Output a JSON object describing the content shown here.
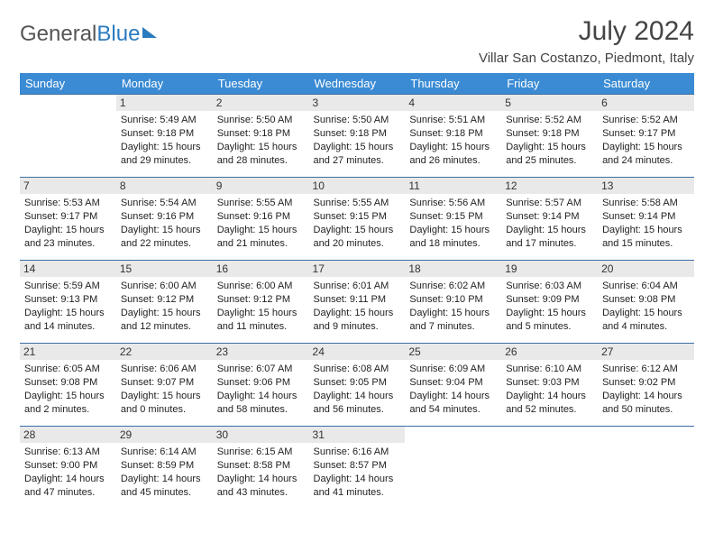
{
  "logo": {
    "part1": "General",
    "part2": "Blue"
  },
  "title": "July 2024",
  "location": "Villar San Costanzo, Piedmont, Italy",
  "colors": {
    "header_bg": "#3b8bd4",
    "header_text": "#ffffff",
    "border": "#3b6fa3",
    "daynum_bg": "#e9e9e9",
    "logo_blue": "#2b7bbf"
  },
  "weekdays": [
    "Sunday",
    "Monday",
    "Tuesday",
    "Wednesday",
    "Thursday",
    "Friday",
    "Saturday"
  ],
  "weeks": [
    [
      {
        "day": "",
        "sunrise": "",
        "sunset": "",
        "daylight1": "",
        "daylight2": ""
      },
      {
        "day": "1",
        "sunrise": "Sunrise: 5:49 AM",
        "sunset": "Sunset: 9:18 PM",
        "daylight1": "Daylight: 15 hours",
        "daylight2": "and 29 minutes."
      },
      {
        "day": "2",
        "sunrise": "Sunrise: 5:50 AM",
        "sunset": "Sunset: 9:18 PM",
        "daylight1": "Daylight: 15 hours",
        "daylight2": "and 28 minutes."
      },
      {
        "day": "3",
        "sunrise": "Sunrise: 5:50 AM",
        "sunset": "Sunset: 9:18 PM",
        "daylight1": "Daylight: 15 hours",
        "daylight2": "and 27 minutes."
      },
      {
        "day": "4",
        "sunrise": "Sunrise: 5:51 AM",
        "sunset": "Sunset: 9:18 PM",
        "daylight1": "Daylight: 15 hours",
        "daylight2": "and 26 minutes."
      },
      {
        "day": "5",
        "sunrise": "Sunrise: 5:52 AM",
        "sunset": "Sunset: 9:18 PM",
        "daylight1": "Daylight: 15 hours",
        "daylight2": "and 25 minutes."
      },
      {
        "day": "6",
        "sunrise": "Sunrise: 5:52 AM",
        "sunset": "Sunset: 9:17 PM",
        "daylight1": "Daylight: 15 hours",
        "daylight2": "and 24 minutes."
      }
    ],
    [
      {
        "day": "7",
        "sunrise": "Sunrise: 5:53 AM",
        "sunset": "Sunset: 9:17 PM",
        "daylight1": "Daylight: 15 hours",
        "daylight2": "and 23 minutes."
      },
      {
        "day": "8",
        "sunrise": "Sunrise: 5:54 AM",
        "sunset": "Sunset: 9:16 PM",
        "daylight1": "Daylight: 15 hours",
        "daylight2": "and 22 minutes."
      },
      {
        "day": "9",
        "sunrise": "Sunrise: 5:55 AM",
        "sunset": "Sunset: 9:16 PM",
        "daylight1": "Daylight: 15 hours",
        "daylight2": "and 21 minutes."
      },
      {
        "day": "10",
        "sunrise": "Sunrise: 5:55 AM",
        "sunset": "Sunset: 9:15 PM",
        "daylight1": "Daylight: 15 hours",
        "daylight2": "and 20 minutes."
      },
      {
        "day": "11",
        "sunrise": "Sunrise: 5:56 AM",
        "sunset": "Sunset: 9:15 PM",
        "daylight1": "Daylight: 15 hours",
        "daylight2": "and 18 minutes."
      },
      {
        "day": "12",
        "sunrise": "Sunrise: 5:57 AM",
        "sunset": "Sunset: 9:14 PM",
        "daylight1": "Daylight: 15 hours",
        "daylight2": "and 17 minutes."
      },
      {
        "day": "13",
        "sunrise": "Sunrise: 5:58 AM",
        "sunset": "Sunset: 9:14 PM",
        "daylight1": "Daylight: 15 hours",
        "daylight2": "and 15 minutes."
      }
    ],
    [
      {
        "day": "14",
        "sunrise": "Sunrise: 5:59 AM",
        "sunset": "Sunset: 9:13 PM",
        "daylight1": "Daylight: 15 hours",
        "daylight2": "and 14 minutes."
      },
      {
        "day": "15",
        "sunrise": "Sunrise: 6:00 AM",
        "sunset": "Sunset: 9:12 PM",
        "daylight1": "Daylight: 15 hours",
        "daylight2": "and 12 minutes."
      },
      {
        "day": "16",
        "sunrise": "Sunrise: 6:00 AM",
        "sunset": "Sunset: 9:12 PM",
        "daylight1": "Daylight: 15 hours",
        "daylight2": "and 11 minutes."
      },
      {
        "day": "17",
        "sunrise": "Sunrise: 6:01 AM",
        "sunset": "Sunset: 9:11 PM",
        "daylight1": "Daylight: 15 hours",
        "daylight2": "and 9 minutes."
      },
      {
        "day": "18",
        "sunrise": "Sunrise: 6:02 AM",
        "sunset": "Sunset: 9:10 PM",
        "daylight1": "Daylight: 15 hours",
        "daylight2": "and 7 minutes."
      },
      {
        "day": "19",
        "sunrise": "Sunrise: 6:03 AM",
        "sunset": "Sunset: 9:09 PM",
        "daylight1": "Daylight: 15 hours",
        "daylight2": "and 5 minutes."
      },
      {
        "day": "20",
        "sunrise": "Sunrise: 6:04 AM",
        "sunset": "Sunset: 9:08 PM",
        "daylight1": "Daylight: 15 hours",
        "daylight2": "and 4 minutes."
      }
    ],
    [
      {
        "day": "21",
        "sunrise": "Sunrise: 6:05 AM",
        "sunset": "Sunset: 9:08 PM",
        "daylight1": "Daylight: 15 hours",
        "daylight2": "and 2 minutes."
      },
      {
        "day": "22",
        "sunrise": "Sunrise: 6:06 AM",
        "sunset": "Sunset: 9:07 PM",
        "daylight1": "Daylight: 15 hours",
        "daylight2": "and 0 minutes."
      },
      {
        "day": "23",
        "sunrise": "Sunrise: 6:07 AM",
        "sunset": "Sunset: 9:06 PM",
        "daylight1": "Daylight: 14 hours",
        "daylight2": "and 58 minutes."
      },
      {
        "day": "24",
        "sunrise": "Sunrise: 6:08 AM",
        "sunset": "Sunset: 9:05 PM",
        "daylight1": "Daylight: 14 hours",
        "daylight2": "and 56 minutes."
      },
      {
        "day": "25",
        "sunrise": "Sunrise: 6:09 AM",
        "sunset": "Sunset: 9:04 PM",
        "daylight1": "Daylight: 14 hours",
        "daylight2": "and 54 minutes."
      },
      {
        "day": "26",
        "sunrise": "Sunrise: 6:10 AM",
        "sunset": "Sunset: 9:03 PM",
        "daylight1": "Daylight: 14 hours",
        "daylight2": "and 52 minutes."
      },
      {
        "day": "27",
        "sunrise": "Sunrise: 6:12 AM",
        "sunset": "Sunset: 9:02 PM",
        "daylight1": "Daylight: 14 hours",
        "daylight2": "and 50 minutes."
      }
    ],
    [
      {
        "day": "28",
        "sunrise": "Sunrise: 6:13 AM",
        "sunset": "Sunset: 9:00 PM",
        "daylight1": "Daylight: 14 hours",
        "daylight2": "and 47 minutes."
      },
      {
        "day": "29",
        "sunrise": "Sunrise: 6:14 AM",
        "sunset": "Sunset: 8:59 PM",
        "daylight1": "Daylight: 14 hours",
        "daylight2": "and 45 minutes."
      },
      {
        "day": "30",
        "sunrise": "Sunrise: 6:15 AM",
        "sunset": "Sunset: 8:58 PM",
        "daylight1": "Daylight: 14 hours",
        "daylight2": "and 43 minutes."
      },
      {
        "day": "31",
        "sunrise": "Sunrise: 6:16 AM",
        "sunset": "Sunset: 8:57 PM",
        "daylight1": "Daylight: 14 hours",
        "daylight2": "and 41 minutes."
      },
      {
        "day": "",
        "sunrise": "",
        "sunset": "",
        "daylight1": "",
        "daylight2": ""
      },
      {
        "day": "",
        "sunrise": "",
        "sunset": "",
        "daylight1": "",
        "daylight2": ""
      },
      {
        "day": "",
        "sunrise": "",
        "sunset": "",
        "daylight1": "",
        "daylight2": ""
      }
    ]
  ]
}
